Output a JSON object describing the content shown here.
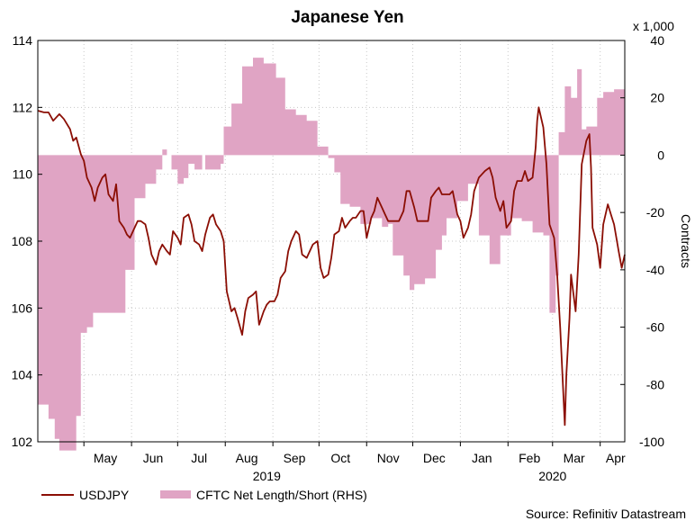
{
  "chart_data": {
    "type": "line+area",
    "title": "Japanese Yen",
    "left_axis": {
      "min": 102,
      "max": 114,
      "ticks": [
        102,
        104,
        106,
        108,
        110,
        112,
        114
      ]
    },
    "right_axis": {
      "min": -100,
      "max": 40,
      "ticks": [
        -100,
        -80,
        -60,
        -40,
        -20,
        0,
        20,
        40
      ],
      "multiplier_label": "x 1,000",
      "label": "Contracts"
    },
    "x_axis": {
      "start": "2019-04-01",
      "end": "2020-04-17",
      "month_labels": [
        {
          "label": "May",
          "date": "2019-05-15"
        },
        {
          "label": "Jun",
          "date": "2019-06-15"
        },
        {
          "label": "Jul",
          "date": "2019-07-15"
        },
        {
          "label": "Aug",
          "date": "2019-08-15"
        },
        {
          "label": "Sep",
          "date": "2019-09-15"
        },
        {
          "label": "Oct",
          "date": "2019-10-15"
        },
        {
          "label": "Nov",
          "date": "2019-11-15"
        },
        {
          "label": "Dec",
          "date": "2019-12-15"
        },
        {
          "label": "Jan",
          "date": "2020-01-15"
        },
        {
          "label": "Feb",
          "date": "2020-02-15"
        },
        {
          "label": "Mar",
          "date": "2020-03-15"
        },
        {
          "label": "Apr",
          "date": "2020-04-11"
        }
      ],
      "month_boundaries": [
        "2019-05-01",
        "2019-06-01",
        "2019-07-01",
        "2019-08-01",
        "2019-09-01",
        "2019-10-01",
        "2019-11-01",
        "2019-12-01",
        "2020-01-01",
        "2020-02-01",
        "2020-03-01",
        "2020-04-01"
      ],
      "year_labels": [
        {
          "label": "2019",
          "date": "2019-08-28"
        },
        {
          "label": "2020",
          "date": "2020-03-01"
        }
      ]
    },
    "series": [
      {
        "name": "CFTC Net Length/Short (RHS)",
        "kind": "step-area",
        "axis": "right",
        "color": "#e0a4c4",
        "points": [
          [
            "2019-04-01",
            -87
          ],
          [
            "2019-04-08",
            -92
          ],
          [
            "2019-04-12",
            -99
          ],
          [
            "2019-04-15",
            -103
          ],
          [
            "2019-04-26",
            -91
          ],
          [
            "2019-04-29",
            -62
          ],
          [
            "2019-05-03",
            -60
          ],
          [
            "2019-05-07",
            -55
          ],
          [
            "2019-05-13",
            -55
          ],
          [
            "2019-05-20",
            -55
          ],
          [
            "2019-05-28",
            -40
          ],
          [
            "2019-06-03",
            -15
          ],
          [
            "2019-06-10",
            -10
          ],
          [
            "2019-06-17",
            -5
          ],
          [
            "2019-06-21",
            2
          ],
          [
            "2019-06-24",
            0
          ],
          [
            "2019-06-27",
            -5
          ],
          [
            "2019-07-01",
            -10
          ],
          [
            "2019-07-05",
            -8
          ],
          [
            "2019-07-08",
            -3
          ],
          [
            "2019-07-12",
            -5
          ],
          [
            "2019-07-17",
            0
          ],
          [
            "2019-07-19",
            -5
          ],
          [
            "2019-07-29",
            -3
          ],
          [
            "2019-07-31",
            10
          ],
          [
            "2019-08-05",
            18
          ],
          [
            "2019-08-12",
            31
          ],
          [
            "2019-08-19",
            34
          ],
          [
            "2019-08-26",
            32
          ],
          [
            "2019-09-03",
            27
          ],
          [
            "2019-09-09",
            16
          ],
          [
            "2019-09-16",
            14
          ],
          [
            "2019-09-23",
            12
          ],
          [
            "2019-09-30",
            3
          ],
          [
            "2019-10-07",
            -1
          ],
          [
            "2019-10-11",
            -6
          ],
          [
            "2019-10-15",
            -17
          ],
          [
            "2019-10-21",
            -18
          ],
          [
            "2019-10-28",
            -24
          ],
          [
            "2019-11-04",
            -22
          ],
          [
            "2019-11-11",
            -25
          ],
          [
            "2019-11-15",
            -24
          ],
          [
            "2019-11-18",
            -35
          ],
          [
            "2019-11-22",
            -35
          ],
          [
            "2019-11-25",
            -42
          ],
          [
            "2019-11-29",
            -47
          ],
          [
            "2019-12-02",
            -45
          ],
          [
            "2019-12-09",
            -43
          ],
          [
            "2019-12-16",
            -33
          ],
          [
            "2019-12-20",
            -28
          ],
          [
            "2019-12-23",
            -22
          ],
          [
            "2019-12-30",
            -16
          ],
          [
            "2020-01-06",
            -10
          ],
          [
            "2020-01-13",
            -28
          ],
          [
            "2020-01-20",
            -38
          ],
          [
            "2020-01-27",
            -28
          ],
          [
            "2020-02-03",
            -22
          ],
          [
            "2020-02-10",
            -23
          ],
          [
            "2020-02-17",
            -27
          ],
          [
            "2020-02-24",
            -28
          ],
          [
            "2020-02-28",
            -55
          ],
          [
            "2020-03-03",
            -42
          ],
          [
            "2020-03-05",
            8
          ],
          [
            "2020-03-09",
            24
          ],
          [
            "2020-03-13",
            20
          ],
          [
            "2020-03-17",
            30
          ],
          [
            "2020-03-20",
            9
          ],
          [
            "2020-03-23",
            10
          ],
          [
            "2020-03-30",
            20
          ],
          [
            "2020-04-03",
            22
          ],
          [
            "2020-04-07",
            22
          ],
          [
            "2020-04-10",
            23
          ],
          [
            "2020-04-17",
            23
          ]
        ]
      },
      {
        "name": "USDJPY",
        "kind": "line",
        "axis": "left",
        "color": "#8b0e04",
        "points": [
          [
            "2019-04-01",
            111.9
          ],
          [
            "2019-04-05",
            111.85
          ],
          [
            "2019-04-08",
            111.85
          ],
          [
            "2019-04-11",
            111.6
          ],
          [
            "2019-04-15",
            111.8
          ],
          [
            "2019-04-18",
            111.65
          ],
          [
            "2019-04-22",
            111.35
          ],
          [
            "2019-04-24",
            111.0
          ],
          [
            "2019-04-26",
            111.1
          ],
          [
            "2019-04-29",
            110.6
          ],
          [
            "2019-05-01",
            110.4
          ],
          [
            "2019-05-03",
            109.9
          ],
          [
            "2019-05-06",
            109.6
          ],
          [
            "2019-05-08",
            109.2
          ],
          [
            "2019-05-10",
            109.6
          ],
          [
            "2019-05-13",
            109.9
          ],
          [
            "2019-05-15",
            110.0
          ],
          [
            "2019-05-17",
            109.4
          ],
          [
            "2019-05-20",
            109.2
          ],
          [
            "2019-05-22",
            109.7
          ],
          [
            "2019-05-24",
            108.6
          ],
          [
            "2019-05-27",
            108.4
          ],
          [
            "2019-05-29",
            108.2
          ],
          [
            "2019-05-31",
            108.1
          ],
          [
            "2019-06-03",
            108.4
          ],
          [
            "2019-06-05",
            108.6
          ],
          [
            "2019-06-07",
            108.6
          ],
          [
            "2019-06-10",
            108.5
          ],
          [
            "2019-06-12",
            108.1
          ],
          [
            "2019-06-14",
            107.6
          ],
          [
            "2019-06-17",
            107.3
          ],
          [
            "2019-06-19",
            107.7
          ],
          [
            "2019-06-21",
            107.9
          ],
          [
            "2019-06-24",
            107.7
          ],
          [
            "2019-06-26",
            107.6
          ],
          [
            "2019-06-28",
            108.3
          ],
          [
            "2019-07-01",
            108.1
          ],
          [
            "2019-07-03",
            107.9
          ],
          [
            "2019-07-05",
            108.7
          ],
          [
            "2019-07-08",
            108.8
          ],
          [
            "2019-07-10",
            108.5
          ],
          [
            "2019-07-12",
            108.0
          ],
          [
            "2019-07-15",
            107.9
          ],
          [
            "2019-07-17",
            107.7
          ],
          [
            "2019-07-19",
            108.2
          ],
          [
            "2019-07-22",
            108.7
          ],
          [
            "2019-07-24",
            108.8
          ],
          [
            "2019-07-26",
            108.5
          ],
          [
            "2019-07-29",
            108.3
          ],
          [
            "2019-07-31",
            108.0
          ],
          [
            "2019-08-02",
            106.5
          ],
          [
            "2019-08-05",
            105.9
          ],
          [
            "2019-08-07",
            106.0
          ],
          [
            "2019-08-09",
            105.7
          ],
          [
            "2019-08-12",
            105.2
          ],
          [
            "2019-08-14",
            105.9
          ],
          [
            "2019-08-16",
            106.3
          ],
          [
            "2019-08-19",
            106.4
          ],
          [
            "2019-08-21",
            106.5
          ],
          [
            "2019-08-23",
            105.5
          ],
          [
            "2019-08-26",
            105.9
          ],
          [
            "2019-08-28",
            106.1
          ],
          [
            "2019-08-30",
            106.2
          ],
          [
            "2019-09-02",
            106.2
          ],
          [
            "2019-09-04",
            106.4
          ],
          [
            "2019-09-06",
            106.9
          ],
          [
            "2019-09-09",
            107.1
          ],
          [
            "2019-09-11",
            107.7
          ],
          [
            "2019-09-13",
            108.0
          ],
          [
            "2019-09-16",
            108.3
          ],
          [
            "2019-09-18",
            108.2
          ],
          [
            "2019-09-20",
            107.6
          ],
          [
            "2019-09-23",
            107.5
          ],
          [
            "2019-09-25",
            107.7
          ],
          [
            "2019-09-27",
            107.9
          ],
          [
            "2019-09-30",
            108.0
          ],
          [
            "2019-10-02",
            107.2
          ],
          [
            "2019-10-04",
            106.9
          ],
          [
            "2019-10-07",
            107.0
          ],
          [
            "2019-10-09",
            107.5
          ],
          [
            "2019-10-11",
            108.2
          ],
          [
            "2019-10-14",
            108.3
          ],
          [
            "2019-10-16",
            108.7
          ],
          [
            "2019-10-18",
            108.4
          ],
          [
            "2019-10-21",
            108.6
          ],
          [
            "2019-10-23",
            108.7
          ],
          [
            "2019-10-25",
            108.7
          ],
          [
            "2019-10-28",
            108.9
          ],
          [
            "2019-10-30",
            108.9
          ],
          [
            "2019-11-01",
            108.1
          ],
          [
            "2019-11-04",
            108.7
          ],
          [
            "2019-11-06",
            108.9
          ],
          [
            "2019-11-08",
            109.3
          ],
          [
            "2019-11-11",
            109.0
          ],
          [
            "2019-11-13",
            108.8
          ],
          [
            "2019-11-15",
            108.6
          ],
          [
            "2019-11-18",
            108.6
          ],
          [
            "2019-11-20",
            108.6
          ],
          [
            "2019-11-22",
            108.6
          ],
          [
            "2019-11-25",
            108.9
          ],
          [
            "2019-11-27",
            109.5
          ],
          [
            "2019-11-29",
            109.5
          ],
          [
            "2019-12-02",
            109.0
          ],
          [
            "2019-12-04",
            108.6
          ],
          [
            "2019-12-06",
            108.6
          ],
          [
            "2019-12-09",
            108.6
          ],
          [
            "2019-12-11",
            108.6
          ],
          [
            "2019-12-13",
            109.3
          ],
          [
            "2019-12-16",
            109.5
          ],
          [
            "2019-12-18",
            109.6
          ],
          [
            "2019-12-20",
            109.4
          ],
          [
            "2019-12-23",
            109.4
          ],
          [
            "2019-12-25",
            109.4
          ],
          [
            "2019-12-27",
            109.5
          ],
          [
            "2019-12-30",
            108.8
          ],
          [
            "2020-01-01",
            108.6
          ],
          [
            "2020-01-03",
            108.1
          ],
          [
            "2020-01-06",
            108.4
          ],
          [
            "2020-01-08",
            108.8
          ],
          [
            "2020-01-10",
            109.5
          ],
          [
            "2020-01-13",
            109.9
          ],
          [
            "2020-01-15",
            110.0
          ],
          [
            "2020-01-17",
            110.1
          ],
          [
            "2020-01-20",
            110.2
          ],
          [
            "2020-01-22",
            109.9
          ],
          [
            "2020-01-24",
            109.3
          ],
          [
            "2020-01-27",
            108.9
          ],
          [
            "2020-01-29",
            109.2
          ],
          [
            "2020-01-31",
            108.4
          ],
          [
            "2020-02-03",
            108.6
          ],
          [
            "2020-02-05",
            109.5
          ],
          [
            "2020-02-07",
            109.8
          ],
          [
            "2020-02-10",
            109.8
          ],
          [
            "2020-02-12",
            110.1
          ],
          [
            "2020-02-14",
            109.8
          ],
          [
            "2020-02-17",
            109.9
          ],
          [
            "2020-02-19",
            110.8
          ],
          [
            "2020-02-20",
            111.6
          ],
          [
            "2020-02-21",
            112.0
          ],
          [
            "2020-02-24",
            111.4
          ],
          [
            "2020-02-26",
            110.3
          ],
          [
            "2020-02-28",
            108.5
          ],
          [
            "2020-03-02",
            108.1
          ],
          [
            "2020-03-04",
            107.0
          ],
          [
            "2020-03-06",
            105.4
          ],
          [
            "2020-03-09",
            102.5
          ],
          [
            "2020-03-10",
            104.0
          ],
          [
            "2020-03-12",
            105.7
          ],
          [
            "2020-03-13",
            107.0
          ],
          [
            "2020-03-16",
            105.9
          ],
          [
            "2020-03-18",
            107.6
          ],
          [
            "2020-03-20",
            110.3
          ],
          [
            "2020-03-23",
            111.0
          ],
          [
            "2020-03-25",
            111.2
          ],
          [
            "2020-03-26",
            110.2
          ],
          [
            "2020-03-27",
            108.4
          ],
          [
            "2020-03-30",
            107.9
          ],
          [
            "2020-04-01",
            107.2
          ],
          [
            "2020-04-03",
            108.5
          ],
          [
            "2020-04-06",
            109.1
          ],
          [
            "2020-04-08",
            108.8
          ],
          [
            "2020-04-10",
            108.5
          ],
          [
            "2020-04-13",
            107.7
          ],
          [
            "2020-04-15",
            107.2
          ],
          [
            "2020-04-17",
            107.6
          ]
        ]
      }
    ],
    "legend": [
      {
        "label": "USDJPY",
        "type": "line"
      },
      {
        "label": "CFTC Net Length/Short (RHS)",
        "type": "area"
      }
    ],
    "source": "Source: Refinitiv Datastream"
  }
}
